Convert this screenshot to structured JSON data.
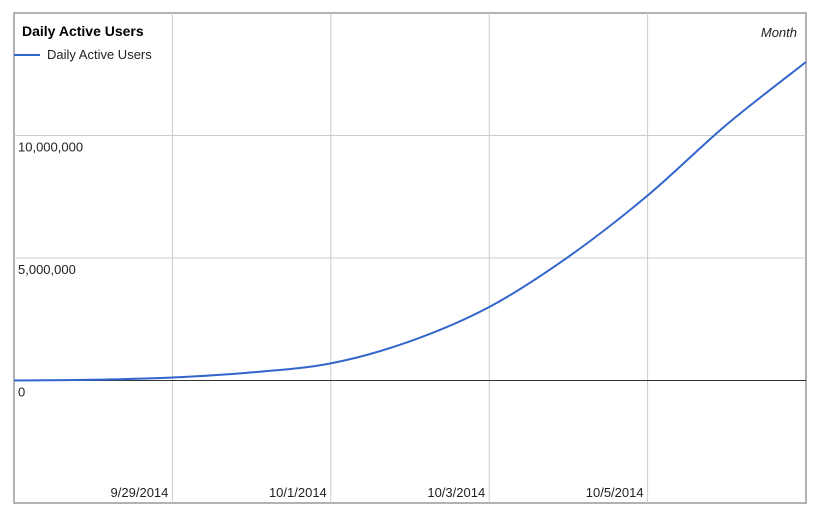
{
  "chart_data": {
    "type": "line",
    "title": "Daily Active Users",
    "corner_label": "Month",
    "xlabel": "",
    "ylabel": "",
    "x": [
      "2014-09-27",
      "2014-09-28",
      "2014-09-29",
      "2014-09-30",
      "2014-10-01",
      "2014-10-02",
      "2014-10-03",
      "2014-10-04",
      "2014-10-05",
      "2014-10-06",
      "2014-10-07"
    ],
    "series": [
      {
        "name": "Daily Active Users",
        "color": "#3366cc",
        "values": [
          0,
          30000,
          120000,
          330000,
          700000,
          1600000,
          3000000,
          5050000,
          7550000,
          10450000,
          13000000
        ]
      }
    ],
    "xlim": [
      "2014-09-27",
      "2014-10-07"
    ],
    "ylim": [
      -5000000,
      15000000
    ],
    "x_ticks": [
      {
        "date": "2014-09-29",
        "label": "9/29/2014"
      },
      {
        "date": "2014-10-01",
        "label": "10/1/2014"
      },
      {
        "date": "2014-10-03",
        "label": "10/3/2014"
      },
      {
        "date": "2014-10-05",
        "label": "10/5/2014"
      }
    ],
    "y_ticks": [
      {
        "value": 0,
        "label": "0"
      },
      {
        "value": 5000000,
        "label": "5,000,000"
      },
      {
        "value": 10000000,
        "label": "10,000,000"
      }
    ],
    "grid": true,
    "legend": "top-left",
    "colors": {
      "grid": "#cccccc",
      "zero_line": "#333333",
      "border": "#999999"
    }
  }
}
